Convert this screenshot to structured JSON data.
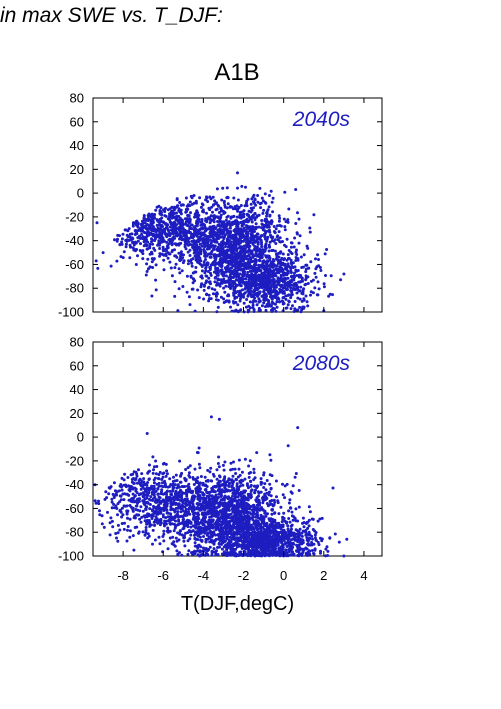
{
  "figure": {
    "heading": "in max SWE vs. T_DJF:",
    "scenario": "A1B",
    "xlabel": "T(DJF,degC)"
  },
  "colors": {
    "points": "#1d1dc0",
    "frame": "#000000",
    "label": "#1d1dc0"
  },
  "chart_data": [
    {
      "type": "scatter",
      "panel_label": "2040s",
      "xlim": [
        -9.5,
        4.9
      ],
      "ylim": [
        -100,
        80
      ],
      "xticks": [
        -8,
        -6,
        -4,
        -2,
        0,
        2,
        4
      ],
      "yticks": [
        80,
        60,
        40,
        20,
        0,
        -20,
        -40,
        -60,
        -80,
        -100
      ],
      "x_tick_labels_shown": false,
      "grid": false,
      "point_cloud": {
        "approx_count": 3000,
        "components": [
          {
            "weight": 0.3,
            "x_mean": -6.0,
            "x_sd": 1.6,
            "y_mean": -30,
            "y_sd": 14
          },
          {
            "weight": 0.45,
            "x_mean": -2.4,
            "x_sd": 1.3,
            "y_mean": -45,
            "y_sd": 20
          },
          {
            "weight": 0.25,
            "x_mean": -0.8,
            "x_sd": 1.2,
            "y_mean": -75,
            "y_sd": 12
          }
        ],
        "extremes": [
          [
            -9.3,
            -25
          ],
          [
            -2.3,
            17
          ],
          [
            -1.9,
            5
          ],
          [
            0.6,
            3
          ],
          [
            3.0,
            -68
          ],
          [
            2.0,
            -99
          ],
          [
            1.0,
            -97
          ]
        ]
      }
    },
    {
      "type": "scatter",
      "panel_label": "2080s",
      "xlim": [
        -9.5,
        4.9
      ],
      "ylim": [
        -100,
        80
      ],
      "xticks": [
        -8,
        -6,
        -4,
        -2,
        0,
        2,
        4
      ],
      "yticks": [
        80,
        60,
        40,
        20,
        0,
        -20,
        -40,
        -60,
        -80,
        -100
      ],
      "x_tick_labels_shown": true,
      "grid": false,
      "point_cloud": {
        "approx_count": 3000,
        "components": [
          {
            "weight": 0.25,
            "x_mean": -6.2,
            "x_sd": 1.5,
            "y_mean": -55,
            "y_sd": 15
          },
          {
            "weight": 0.45,
            "x_mean": -2.8,
            "x_sd": 1.4,
            "y_mean": -65,
            "y_sd": 18
          },
          {
            "weight": 0.3,
            "x_mean": -0.9,
            "x_sd": 1.3,
            "y_mean": -88,
            "y_sd": 9
          }
        ],
        "extremes": [
          [
            -9.4,
            -40
          ],
          [
            -3.6,
            17
          ],
          [
            -3.2,
            15
          ],
          [
            0.7,
            8
          ],
          [
            2.3,
            -85
          ],
          [
            3.0,
            -100
          ],
          [
            -6.8,
            3
          ]
        ]
      }
    }
  ]
}
